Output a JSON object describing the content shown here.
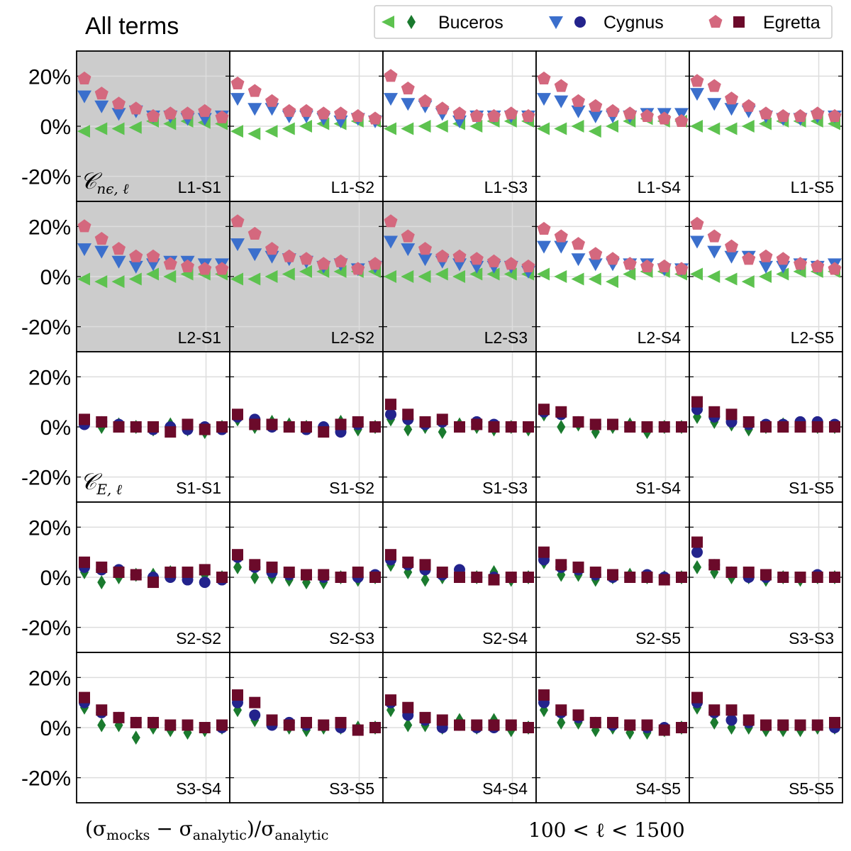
{
  "figure": {
    "title": "All terms",
    "xlabel_left": {
      "open": "(σ",
      "mocks": "mocks",
      "minus": " − σ",
      "analytic": "analytic",
      "div": ")/σ",
      "analytic2": "analytic"
    },
    "xlabel_right": "100 < ℓ < 1500",
    "row_labels": [
      {
        "row": 0,
        "main": "𝒞",
        "sub": "nϵ, ℓ"
      },
      {
        "row": 2,
        "main": "𝒞",
        "sub": "E, ℓ"
      }
    ]
  },
  "legend": {
    "entries": [
      {
        "name": "Buceros",
        "markers": [
          "triangle-left",
          "diamond"
        ],
        "colors": [
          "#5dc24f",
          "#1a7a2e"
        ]
      },
      {
        "name": "Cygnus",
        "markers": [
          "triangle-down",
          "circle"
        ],
        "colors": [
          "#3b6fcc",
          "#23238c"
        ]
      },
      {
        "name": "Egretta",
        "markers": [
          "pentagon",
          "square"
        ],
        "colors": [
          "#d4687e",
          "#6b0a2a"
        ]
      }
    ]
  },
  "colors": {
    "buceros_top": "#5dc24f",
    "buceros_bottom": "#1a7a2e",
    "cygnus_top": "#3b6fcc",
    "cygnus_bottom": "#23238c",
    "egretta_top": "#d4687e",
    "egretta_bottom": "#6b0a2a",
    "shaded_panel": "#cccccc",
    "grid": "#dddddd"
  },
  "chart_data": {
    "type": "scatter",
    "grid_rows": 5,
    "grid_cols": 5,
    "ylim": [
      -0.3,
      0.3
    ],
    "yticks": [
      -0.2,
      0.0,
      0.2
    ],
    "ytick_labels": [
      "-20%",
      "0%",
      "20%"
    ],
    "x_points": 9,
    "panels": [
      {
        "label": "L1-S1",
        "row": 0,
        "col": 0,
        "shaded": true,
        "term": "ne",
        "series": [
          [
            -0.02,
            -0.01,
            -0.01,
            -0.005,
            0.02,
            0.01,
            0.02,
            0.015,
            0.01
          ],
          [
            0.12,
            0.08,
            0.05,
            0.06,
            0.04,
            0.04,
            0.03,
            0.03,
            0.04
          ],
          [
            0.19,
            0.13,
            0.09,
            0.07,
            0.04,
            0.05,
            0.05,
            0.06,
            0.035
          ]
        ]
      },
      {
        "label": "L1-S2",
        "row": 0,
        "col": 1,
        "shaded": false,
        "term": "ne",
        "series": [
          [
            -0.02,
            -0.03,
            -0.02,
            -0.01,
            0.0,
            0.01,
            0.01,
            0.02,
            0.02
          ],
          [
            0.11,
            0.07,
            0.07,
            0.04,
            0.04,
            0.03,
            0.02,
            0.03,
            0.02
          ],
          [
            0.17,
            0.14,
            0.1,
            0.06,
            0.06,
            0.05,
            0.05,
            0.04,
            0.03
          ]
        ]
      },
      {
        "label": "L1-S3",
        "row": 0,
        "col": 2,
        "shaded": false,
        "term": "ne",
        "series": [
          [
            -0.01,
            -0.01,
            0.0,
            0.0,
            0.01,
            0.0,
            0.02,
            0.02,
            0.02
          ],
          [
            0.11,
            0.09,
            0.08,
            0.05,
            0.02,
            0.04,
            0.04,
            0.04,
            0.04
          ],
          [
            0.2,
            0.15,
            0.1,
            0.07,
            0.05,
            0.04,
            0.04,
            0.05,
            0.04
          ]
        ]
      },
      {
        "label": "L1-S4",
        "row": 0,
        "col": 3,
        "shaded": false,
        "term": "ne",
        "series": [
          [
            -0.01,
            -0.01,
            0.0,
            -0.02,
            0.0,
            0.02,
            0.03,
            0.02,
            0.02
          ],
          [
            0.11,
            0.1,
            0.06,
            0.04,
            0.04,
            0.04,
            0.05,
            0.05,
            0.05
          ],
          [
            0.19,
            0.16,
            0.1,
            0.08,
            0.06,
            0.05,
            0.04,
            0.03,
            0.02
          ]
        ]
      },
      {
        "label": "L1-S5",
        "row": 0,
        "col": 4,
        "shaded": false,
        "term": "ne",
        "series": [
          [
            0.0,
            -0.01,
            -0.01,
            0.0,
            0.01,
            0.02,
            0.02,
            0.02,
            0.01
          ],
          [
            0.13,
            0.09,
            0.07,
            0.06,
            0.04,
            0.03,
            0.03,
            0.04,
            0.04
          ],
          [
            0.18,
            0.16,
            0.11,
            0.08,
            0.05,
            0.04,
            0.04,
            0.05,
            0.04
          ]
        ]
      },
      {
        "label": "L2-S1",
        "row": 1,
        "col": 0,
        "shaded": true,
        "term": "ne",
        "series": [
          [
            -0.01,
            -0.02,
            -0.02,
            -0.01,
            0.01,
            0.0,
            0.01,
            0.01,
            0.01
          ],
          [
            0.11,
            0.1,
            0.06,
            0.04,
            0.05,
            0.06,
            0.06,
            0.05,
            0.05
          ],
          [
            0.2,
            0.15,
            0.11,
            0.08,
            0.08,
            0.05,
            0.04,
            0.03,
            0.03
          ]
        ]
      },
      {
        "label": "L2-S2",
        "row": 1,
        "col": 1,
        "shaded": true,
        "term": "ne",
        "series": [
          [
            -0.01,
            -0.01,
            0.0,
            0.01,
            0.02,
            0.02,
            0.02,
            0.02,
            0.02
          ],
          [
            0.13,
            0.09,
            0.08,
            0.07,
            0.06,
            0.04,
            0.05,
            0.03,
            0.04
          ],
          [
            0.22,
            0.17,
            0.11,
            0.08,
            0.07,
            0.05,
            0.06,
            0.03,
            0.05
          ]
        ]
      },
      {
        "label": "L2-S3",
        "row": 1,
        "col": 2,
        "shaded": true,
        "term": "ne",
        "series": [
          [
            0.0,
            0.0,
            0.0,
            0.01,
            0.0,
            0.01,
            0.01,
            0.01,
            0.01
          ],
          [
            0.14,
            0.11,
            0.07,
            0.06,
            0.05,
            0.04,
            0.04,
            0.04,
            0.02
          ],
          [
            0.22,
            0.16,
            0.11,
            0.08,
            0.08,
            0.07,
            0.06,
            0.05,
            0.04
          ]
        ]
      },
      {
        "label": "L2-S4",
        "row": 1,
        "col": 3,
        "shaded": false,
        "term": "ne",
        "series": [
          [
            0.01,
            0.0,
            -0.01,
            -0.01,
            -0.02,
            0.01,
            0.02,
            0.02,
            0.01
          ],
          [
            0.12,
            0.12,
            0.07,
            0.05,
            0.05,
            0.05,
            0.05,
            0.03,
            0.03
          ],
          [
            0.19,
            0.16,
            0.13,
            0.09,
            0.07,
            0.05,
            0.04,
            0.04,
            0.03
          ]
        ]
      },
      {
        "label": "L2-S5",
        "row": 1,
        "col": 4,
        "shaded": false,
        "term": "ne",
        "series": [
          [
            0.01,
            0.0,
            -0.01,
            -0.02,
            0.0,
            0.01,
            0.02,
            0.02,
            0.02
          ],
          [
            0.14,
            0.1,
            0.08,
            0.08,
            0.04,
            0.04,
            0.05,
            0.04,
            0.05
          ],
          [
            0.21,
            0.16,
            0.12,
            0.07,
            0.08,
            0.07,
            0.05,
            0.04,
            0.03
          ]
        ]
      },
      {
        "label": "S1-S1",
        "row": 2,
        "col": 0,
        "shaded": false,
        "term": "E",
        "series": [
          [
            0.02,
            0.0,
            0.01,
            0.0,
            -0.01,
            0.01,
            -0.01,
            -0.02,
            0.0
          ],
          [
            0.01,
            0.02,
            0.01,
            0.0,
            -0.01,
            0.0,
            -0.01,
            0.0,
            -0.01
          ],
          [
            0.03,
            0.02,
            0.0,
            0.0,
            0.0,
            -0.02,
            0.01,
            -0.01,
            0.0
          ]
        ]
      },
      {
        "label": "S1-S2",
        "row": 2,
        "col": 1,
        "shaded": false,
        "term": "E",
        "series": [
          [
            0.03,
            0.0,
            0.02,
            0.01,
            0.0,
            -0.01,
            0.02,
            -0.01,
            0.0
          ],
          [
            0.04,
            0.03,
            0.0,
            0.0,
            -0.01,
            0.0,
            -0.02,
            0.01,
            0.0
          ],
          [
            0.05,
            0.01,
            0.01,
            0.0,
            0.0,
            -0.02,
            0.01,
            0.02,
            0.0
          ]
        ]
      },
      {
        "label": "S1-S3",
        "row": 2,
        "col": 2,
        "shaded": false,
        "term": "E",
        "series": [
          [
            0.03,
            -0.01,
            0.0,
            -0.02,
            0.01,
            0.0,
            -0.01,
            0.0,
            -0.01
          ],
          [
            0.05,
            0.03,
            0.01,
            0.02,
            0.0,
            0.02,
            0.01,
            0.0,
            0.0
          ],
          [
            0.09,
            0.05,
            0.02,
            0.03,
            0.0,
            0.01,
            0.0,
            0.0,
            0.0
          ]
        ]
      },
      {
        "label": "S1-S4",
        "row": 2,
        "col": 3,
        "shaded": false,
        "term": "E",
        "series": [
          [
            0.05,
            0.0,
            0.01,
            -0.02,
            0.0,
            0.01,
            -0.02,
            0.0,
            0.0
          ],
          [
            0.06,
            0.05,
            0.02,
            0.01,
            0.01,
            0.0,
            0.0,
            0.0,
            0.0
          ],
          [
            0.07,
            0.06,
            0.02,
            0.01,
            0.01,
            0.0,
            0.0,
            0.0,
            0.0
          ]
        ]
      },
      {
        "label": "S1-S5",
        "row": 2,
        "col": 4,
        "shaded": false,
        "term": "E",
        "series": [
          [
            0.04,
            0.02,
            0.01,
            -0.01,
            0.0,
            0.01,
            0.01,
            0.0,
            0.0
          ],
          [
            0.07,
            0.04,
            0.02,
            0.01,
            0.01,
            0.01,
            0.02,
            0.02,
            0.01
          ],
          [
            0.1,
            0.06,
            0.05,
            0.02,
            0.0,
            0.0,
            0.0,
            0.0,
            0.0
          ]
        ]
      },
      {
        "label": "S2-S2",
        "row": 3,
        "col": 0,
        "shaded": false,
        "term": "E",
        "series": [
          [
            0.02,
            -0.02,
            0.0,
            0.01,
            0.01,
            0.02,
            0.01,
            0.01,
            0.0
          ],
          [
            0.04,
            0.03,
            0.03,
            0.01,
            0.0,
            0.0,
            -0.01,
            -0.02,
            -0.01
          ],
          [
            0.06,
            0.04,
            0.02,
            0.01,
            -0.02,
            0.02,
            0.02,
            0.03,
            0.0
          ]
        ]
      },
      {
        "label": "S2-S3",
        "row": 3,
        "col": 1,
        "shaded": false,
        "term": "E",
        "series": [
          [
            0.04,
            0.0,
            0.0,
            -0.01,
            -0.02,
            -0.02,
            0.0,
            -0.01,
            0.0
          ],
          [
            0.08,
            0.04,
            0.02,
            0.01,
            0.01,
            0.0,
            0.0,
            0.0,
            0.01
          ],
          [
            0.09,
            0.05,
            0.04,
            0.02,
            0.01,
            0.01,
            0.0,
            0.02,
            0.0
          ]
        ]
      },
      {
        "label": "S2-S4",
        "row": 3,
        "col": 2,
        "shaded": false,
        "term": "E",
        "series": [
          [
            0.05,
            0.02,
            -0.01,
            0.0,
            0.02,
            0.0,
            0.02,
            -0.01,
            0.0
          ],
          [
            0.07,
            0.05,
            0.03,
            0.01,
            0.03,
            0.0,
            0.0,
            0.0,
            0.0
          ],
          [
            0.09,
            0.06,
            0.05,
            0.02,
            0.0,
            0.0,
            -0.01,
            0.0,
            0.0
          ]
        ]
      },
      {
        "label": "S2-S5",
        "row": 3,
        "col": 3,
        "shaded": false,
        "term": "E",
        "series": [
          [
            0.06,
            0.01,
            0.01,
            -0.01,
            0.0,
            0.01,
            0.0,
            0.0,
            0.0
          ],
          [
            0.07,
            0.04,
            0.03,
            0.01,
            0.0,
            0.0,
            0.01,
            0.0,
            0.0
          ],
          [
            0.1,
            0.05,
            0.04,
            0.02,
            0.01,
            0.0,
            0.0,
            -0.01,
            0.0
          ]
        ]
      },
      {
        "label": "S3-S3",
        "row": 3,
        "col": 4,
        "shaded": false,
        "term": "E",
        "series": [
          [
            0.04,
            0.02,
            0.0,
            0.0,
            -0.01,
            0.0,
            -0.01,
            0.0,
            0.0
          ],
          [
            0.1,
            0.05,
            0.02,
            0.0,
            0.0,
            0.0,
            0.0,
            0.01,
            0.0
          ],
          [
            0.14,
            0.05,
            0.02,
            0.02,
            0.01,
            0.0,
            0.0,
            0.0,
            0.0
          ]
        ]
      },
      {
        "label": "S3-S4",
        "row": 4,
        "col": 0,
        "shaded": false,
        "term": "E",
        "series": [
          [
            0.08,
            0.01,
            0.01,
            -0.04,
            0.0,
            -0.01,
            -0.02,
            -0.01,
            0.0
          ],
          [
            0.1,
            0.06,
            0.04,
            0.02,
            0.02,
            0.01,
            0.01,
            0.0,
            0.0
          ],
          [
            0.12,
            0.07,
            0.04,
            0.02,
            0.02,
            0.01,
            0.01,
            0.0,
            0.01
          ]
        ]
      },
      {
        "label": "S3-S5",
        "row": 4,
        "col": 1,
        "shaded": false,
        "term": "E",
        "series": [
          [
            0.07,
            0.03,
            0.02,
            0.0,
            -0.01,
            0.0,
            0.0,
            0.0,
            0.0
          ],
          [
            0.1,
            0.05,
            0.01,
            0.02,
            0.01,
            0.01,
            0.0,
            -0.01,
            0.0
          ],
          [
            0.13,
            0.1,
            0.03,
            0.01,
            0.02,
            0.01,
            0.02,
            -0.01,
            0.0
          ]
        ]
      },
      {
        "label": "S4-S4",
        "row": 4,
        "col": 2,
        "shaded": false,
        "term": "E",
        "series": [
          [
            0.07,
            0.01,
            0.01,
            0.0,
            0.03,
            0.0,
            0.03,
            -0.01,
            0.0
          ],
          [
            0.1,
            0.05,
            0.03,
            0.0,
            0.01,
            0.0,
            0.0,
            0.01,
            0.0
          ],
          [
            0.11,
            0.08,
            0.04,
            0.03,
            0.01,
            0.01,
            0.01,
            0.01,
            0.0
          ]
        ]
      },
      {
        "label": "S4-S5",
        "row": 4,
        "col": 3,
        "shaded": false,
        "term": "E",
        "series": [
          [
            0.07,
            0.02,
            0.02,
            -0.01,
            0.0,
            -0.02,
            -0.02,
            -0.01,
            0.0
          ],
          [
            0.1,
            0.06,
            0.04,
            0.02,
            0.01,
            0.01,
            0.0,
            0.0,
            0.0
          ],
          [
            0.13,
            0.07,
            0.05,
            0.02,
            0.02,
            0.01,
            0.01,
            -0.01,
            0.0
          ]
        ]
      },
      {
        "label": "S5-S5",
        "row": 4,
        "col": 4,
        "shaded": false,
        "term": "E",
        "series": [
          [
            0.08,
            0.02,
            0.0,
            0.0,
            -0.01,
            -0.01,
            -0.01,
            0.0,
            0.0
          ],
          [
            0.1,
            0.06,
            0.03,
            0.02,
            0.01,
            0.01,
            0.01,
            0.01,
            0.0
          ],
          [
            0.12,
            0.07,
            0.07,
            0.03,
            0.01,
            0.01,
            0.01,
            0.01,
            0.02
          ]
        ]
      }
    ]
  }
}
